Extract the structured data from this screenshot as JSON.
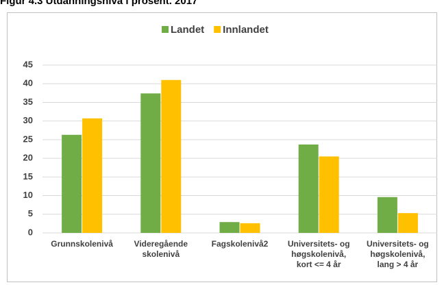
{
  "chart_data": {
    "type": "bar",
    "title": "Figur 4.3 Utdanningsnivå i prosent. 2017",
    "categories": [
      "Grunnskolenivå",
      "Videregående skolenivå",
      "Fagskolenivå2",
      "Universitets- og høgskolenivå, kort <= 4 år",
      "Universitets- og høgskolenivå, lang > 4 år"
    ],
    "series": [
      {
        "name": "Landet",
        "color": "#70ad47",
        "values": [
          26.3,
          37.4,
          2.9,
          23.7,
          9.6
        ]
      },
      {
        "name": "Innlandet",
        "color": "#ffc000",
        "values": [
          30.7,
          41.0,
          2.6,
          20.5,
          5.3
        ]
      }
    ],
    "ylim": [
      0,
      45
    ],
    "yticks": [
      0,
      5,
      10,
      15,
      20,
      25,
      30,
      35,
      40,
      45
    ],
    "grid": true,
    "legend": "top"
  }
}
